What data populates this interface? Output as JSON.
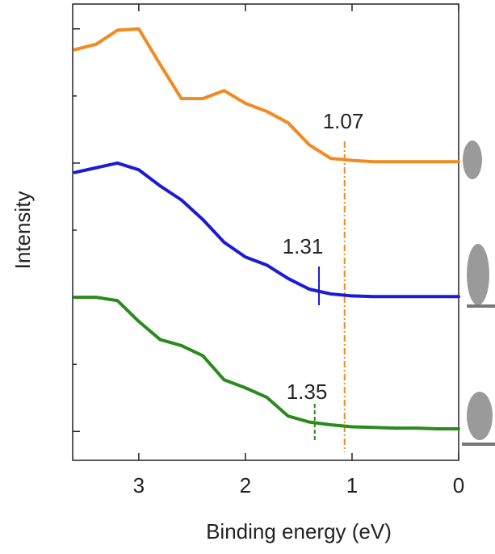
{
  "chart_data": {
    "type": "line",
    "x_label": "Binding energy (eV)",
    "y_label": "Intensity",
    "x": [
      3.6,
      3.4,
      3.2,
      3.0,
      2.8,
      2.6,
      2.4,
      2.2,
      2.0,
      1.8,
      1.6,
      1.4,
      1.2,
      1.0,
      0.8,
      0.6,
      0.4,
      0.2,
      0.0
    ],
    "series": [
      {
        "color": "#f28a1e",
        "values": [
          5.69,
          5.77,
          5.98,
          6.0,
          5.47,
          4.96,
          4.96,
          5.08,
          4.89,
          4.77,
          4.6,
          4.27,
          4.07,
          4.04,
          4.02,
          4.02,
          4.02,
          4.02,
          4.02
        ]
      },
      {
        "color": "#1a1ad8",
        "values": [
          3.86,
          3.93,
          4.0,
          3.9,
          3.66,
          3.45,
          3.16,
          2.82,
          2.6,
          2.48,
          2.28,
          2.12,
          2.05,
          2.02,
          2.01,
          2.01,
          2.01,
          2.01,
          2.01
        ]
      },
      {
        "color": "#2a8a1e",
        "values": [
          2.0,
          2.0,
          1.95,
          1.64,
          1.37,
          1.28,
          1.13,
          0.77,
          0.65,
          0.51,
          0.23,
          0.14,
          0.1,
          0.07,
          0.06,
          0.05,
          0.05,
          0.04,
          0.04
        ]
      }
    ],
    "markers": [
      {
        "value": 1.07,
        "color": "#f28a1e",
        "style": "dashdot"
      },
      {
        "value": 1.31,
        "color": "#1a1ad8",
        "style": "solid"
      },
      {
        "value": 1.35,
        "color": "#2a8a1e",
        "style": "dashed"
      }
    ],
    "xlim": [
      3.62,
      0
    ],
    "xticks": [
      3,
      2,
      1,
      0
    ],
    "ylim": [
      -0.43,
      6.37
    ],
    "yticks": [
      0,
      1,
      2,
      3,
      4,
      5,
      6
    ]
  }
}
